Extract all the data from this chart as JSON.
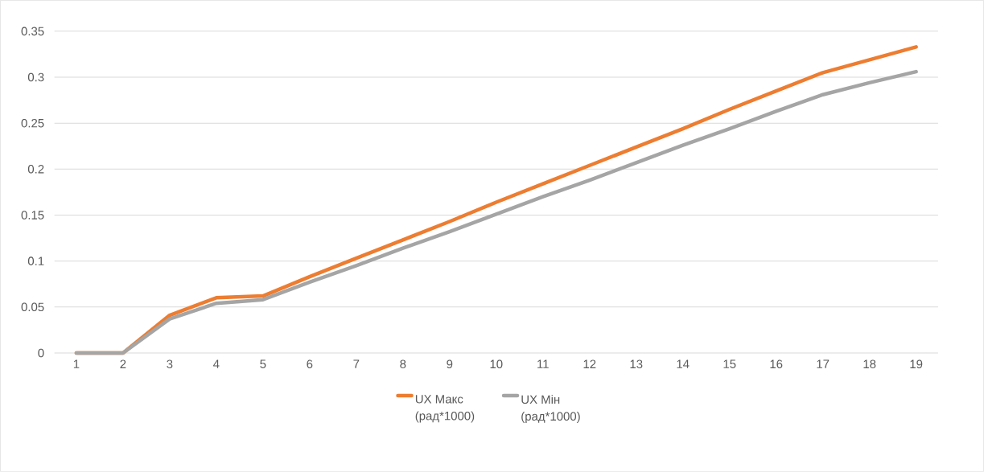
{
  "chart_data": {
    "type": "line",
    "categories": [
      "1",
      "2",
      "3",
      "4",
      "5",
      "6",
      "7",
      "8",
      "9",
      "10",
      "11",
      "12",
      "13",
      "14",
      "15",
      "16",
      "17",
      "18",
      "19"
    ],
    "series": [
      {
        "name": "UX Макс (рад*1000)",
        "color": "#ed7d31",
        "values": [
          0,
          0,
          0.041,
          0.06,
          0.062,
          0.083,
          0.103,
          0.123,
          0.143,
          0.164,
          0.184,
          0.204,
          0.224,
          0.244,
          0.265,
          0.285,
          0.305,
          0.319,
          0.333
        ]
      },
      {
        "name": "UX Мін (рад*1000)",
        "color": "#a5a5a5",
        "values": [
          0,
          0,
          0.037,
          0.054,
          0.058,
          0.077,
          0.095,
          0.114,
          0.132,
          0.151,
          0.17,
          0.188,
          0.207,
          0.226,
          0.244,
          0.263,
          0.281,
          0.294,
          0.306
        ]
      }
    ],
    "ylim": [
      0,
      0.35
    ],
    "yticks": [
      0,
      0.05,
      0.1,
      0.15,
      0.2,
      0.25,
      0.3,
      0.35
    ],
    "grid": "y",
    "legend": "bottom",
    "marker": "none",
    "line_style": "solid"
  }
}
